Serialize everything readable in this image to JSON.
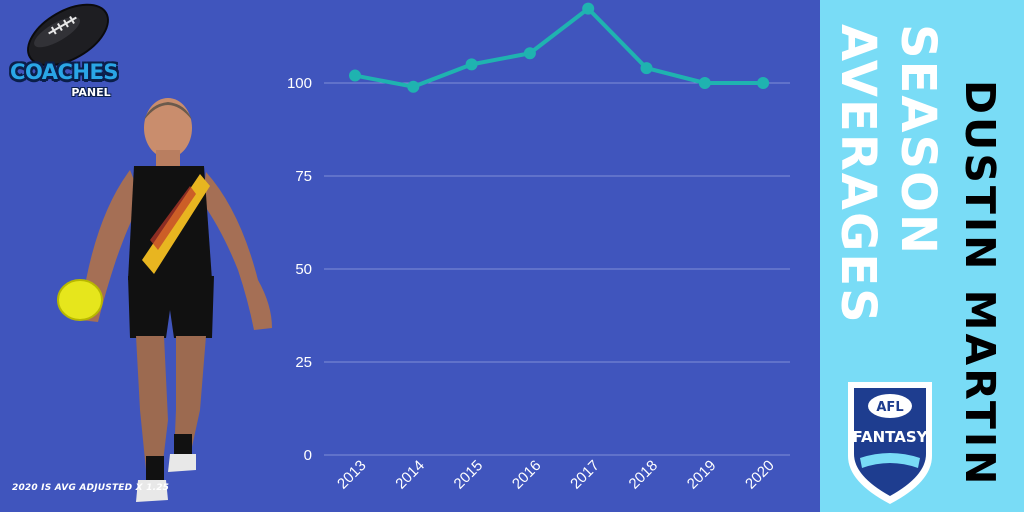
{
  "logo": {
    "word": "COACHES",
    "sub": "PANEL"
  },
  "titles": {
    "player_name": "DUSTIN MARTIN",
    "line1": "SEASON",
    "line2": "AVERAGES"
  },
  "badge": {
    "top": "AFL",
    "main": "FANTASY"
  },
  "footnote": "2020 IS AVG ADJUSTED X 1.25",
  "colors": {
    "background": "#4055bd",
    "side_panel": "#79dcf6",
    "line": "#1fb3b0",
    "badge": "#1e3d8f"
  },
  "chart_data": {
    "type": "line",
    "title": "",
    "xlabel": "",
    "ylabel": "",
    "x": [
      "2013",
      "2014",
      "2015",
      "2016",
      "2017",
      "2018",
      "2019",
      "2020"
    ],
    "series": [
      {
        "values": [
          102,
          99,
          105,
          108,
          120,
          104,
          100,
          100
        ]
      }
    ],
    "ylim": [
      0,
      125
    ],
    "yticks": [
      "0",
      "25",
      "50",
      "75",
      "100"
    ],
    "grid": true,
    "legend": "none"
  }
}
